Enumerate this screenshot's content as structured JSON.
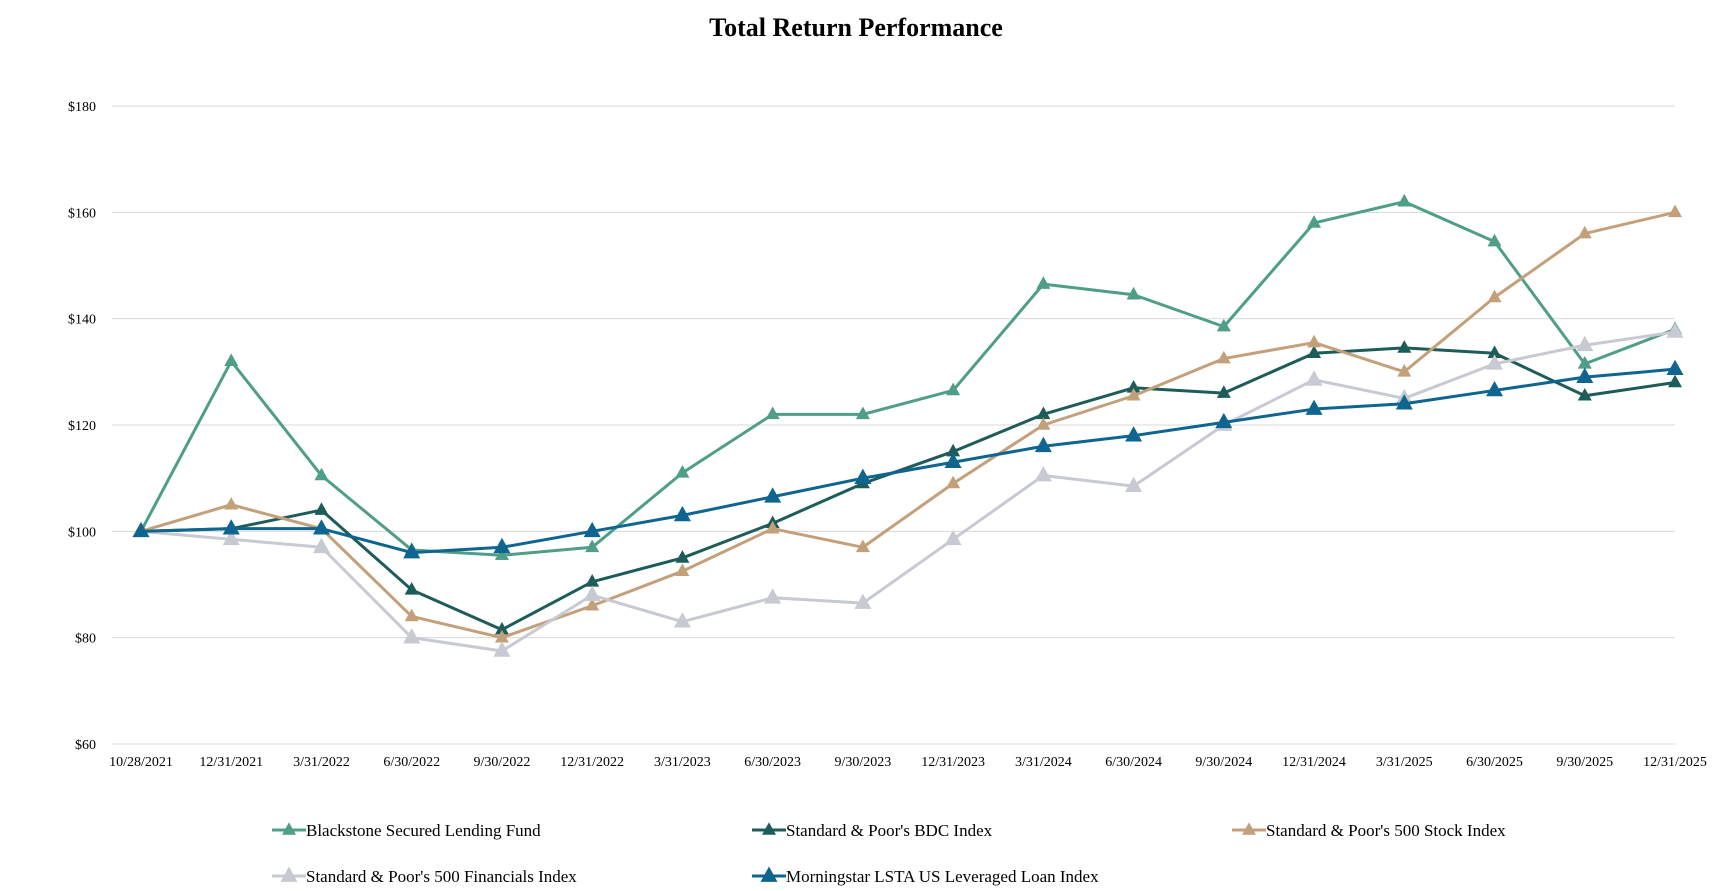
{
  "chart_data": {
    "type": "line",
    "title": "Total Return Performance",
    "xlabel": "",
    "ylabel": "",
    "ylim": [
      60,
      180
    ],
    "y_ticks": [
      60,
      80,
      100,
      120,
      140,
      160,
      180
    ],
    "y_tick_labels": [
      "$60",
      "$80",
      "$100",
      "$120",
      "$140",
      "$160",
      "$180"
    ],
    "grid": true,
    "legend_position": "bottom",
    "categories": [
      "10/28/2021",
      "12/31/2021",
      "3/31/2022",
      "6/30/2022",
      "9/30/2022",
      "12/31/2022",
      "3/31/2023",
      "6/30/2023",
      "9/30/2023",
      "12/31/2023",
      "3/31/2024",
      "6/30/2024",
      "9/30/2024",
      "12/31/2024",
      "3/31/2025",
      "6/30/2025",
      "9/30/2025",
      "12/31/2025"
    ],
    "series": [
      {
        "name": "Blackstone Secured Lending Fund",
        "color": "#4f9e87",
        "values": [
          100,
          132,
          110.5,
          96.5,
          95.5,
          97,
          111,
          122,
          122,
          126.5,
          146.5,
          144.5,
          138.5,
          158,
          162,
          154.5,
          131.5,
          138
        ]
      },
      {
        "name": "Standard & Poor's BDC Index",
        "color": "#1d5c59",
        "values": [
          100,
          100.5,
          104,
          89,
          81.5,
          90.5,
          95,
          101.5,
          109,
          115,
          122,
          127,
          126,
          133.5,
          134.5,
          133.5,
          125.5,
          128
        ]
      },
      {
        "name": "Standard & Poor's 500 Stock Index",
        "color": "#c4a07a",
        "values": [
          100,
          105,
          100.5,
          84,
          80,
          86,
          92.5,
          100.5,
          97,
          109,
          120,
          125.5,
          132.5,
          135.5,
          130,
          144,
          156,
          160
        ]
      },
      {
        "name": "Standard & Poor's 500 Financials Index",
        "color": "#c7c9d3",
        "values": [
          100,
          98.5,
          97,
          80,
          77.5,
          88,
          83,
          87.5,
          86.5,
          98.5,
          110.5,
          108.5,
          120,
          128.5,
          125,
          131.5,
          135,
          137.5
        ]
      },
      {
        "name": "Morningstar LSTA US Leveraged Loan Index",
        "color": "#0e6590",
        "values": [
          100,
          100.5,
          100.5,
          96,
          97,
          100,
          103,
          106.5,
          110,
          113,
          116,
          118,
          120.5,
          123,
          124,
          126.5,
          129,
          130.5
        ]
      }
    ]
  }
}
